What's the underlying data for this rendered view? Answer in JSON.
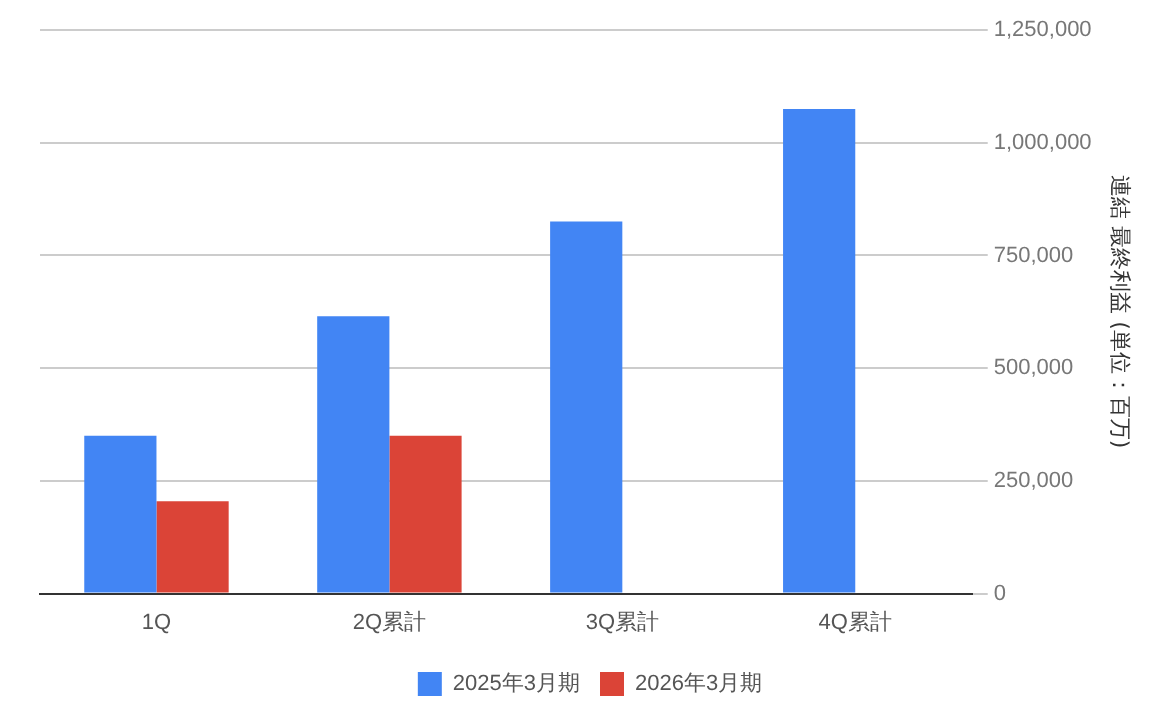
{
  "chart_data": {
    "type": "bar",
    "categories": [
      "1Q",
      "2Q累計",
      "3Q累計",
      "4Q累計"
    ],
    "series": [
      {
        "name": "2025年3月期",
        "color": "#4285f4",
        "values": [
          350000,
          615000,
          825000,
          1075000
        ]
      },
      {
        "name": "2026年3月期",
        "color": "#db4437",
        "values": [
          205000,
          350000,
          null,
          null
        ]
      }
    ],
    "ylabel": "連結 最終利益 (単位：百万)",
    "ylim": [
      0,
      1250000
    ],
    "yticks": [
      0,
      {
        "value": 250000,
        "label": "250,000"
      },
      {
        "value": 500000,
        "label": "500,000"
      },
      {
        "value": 750000,
        "label": "750,000"
      },
      {
        "value": 1000000,
        "label": "1,000,000"
      },
      {
        "value": 1250000,
        "label": "1,250,000"
      }
    ],
    "grid": "y",
    "legend": "bottom"
  }
}
